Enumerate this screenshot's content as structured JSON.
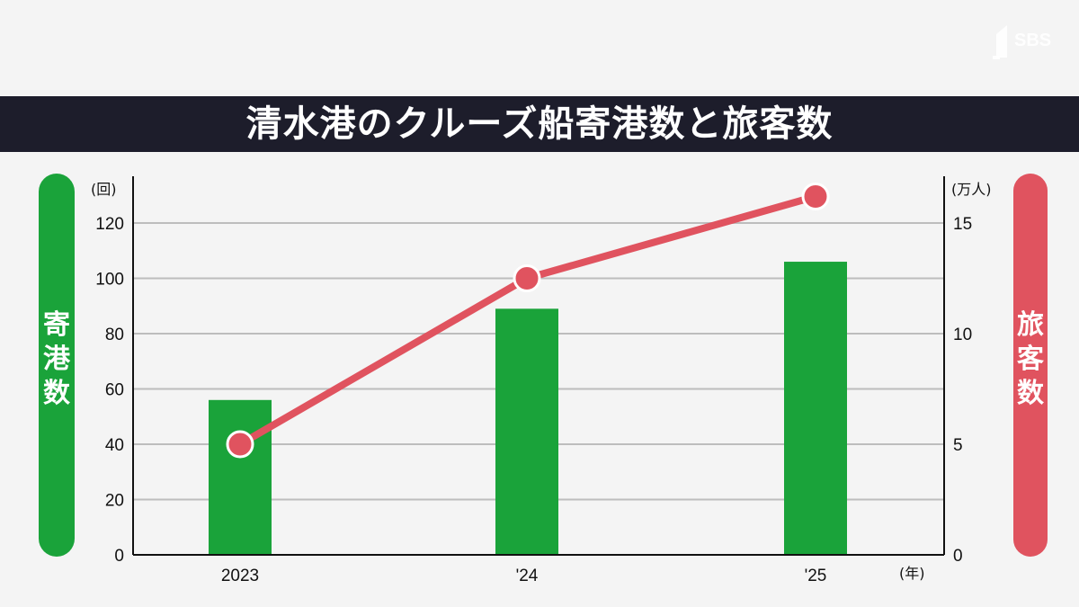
{
  "brand": {
    "logo_text": "SBS"
  },
  "chart_data": {
    "type": "bar+line",
    "title": "清水港のクルーズ船寄港数と旅客数",
    "categories": [
      "2023",
      "'24",
      "'25"
    ],
    "x_unit": "(年)",
    "left_axis": {
      "label": "寄港数",
      "unit": "(回)",
      "ylim": [
        0,
        120
      ],
      "ticks": [
        "0",
        "20",
        "40",
        "60",
        "80",
        "100",
        "120"
      ]
    },
    "right_axis": {
      "label": "旅客数",
      "unit": "(万人)",
      "ylim": [
        0,
        15
      ],
      "ticks": [
        "0",
        "5",
        "10",
        "15"
      ]
    },
    "series": [
      {
        "type": "bar",
        "axis": "left",
        "color": "#1aa33a",
        "values": [
          56,
          89,
          106
        ]
      },
      {
        "type": "line",
        "axis": "right",
        "color": "#e0535f",
        "values": [
          5.0,
          12.5,
          16.2
        ]
      }
    ],
    "grid": true,
    "legend": "none"
  }
}
